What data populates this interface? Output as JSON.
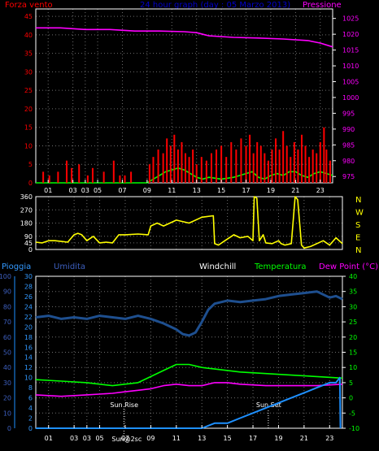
{
  "colors": {
    "background": "#000000",
    "frame": "#ffffff",
    "grid": "#6e6e6e",
    "wind_speed": "#ff0000",
    "wind_avg": "#00ff00",
    "pressure": "#ff00ff",
    "direction": "#ffff00",
    "humidity": "#1e4f8f",
    "humidity_text": "#3d5fbf",
    "rain_text": "#3399ff",
    "rain": "#1e90ff",
    "windchill": "#ffffff",
    "temperature": "#00ff00",
    "dewpoint": "#ff00ff",
    "title": "#0000cc",
    "marker": "#ffffff"
  },
  "chart_data": [
    {
      "type": "line",
      "title": "24 hour graph (day : 05 Marzo 2013)",
      "left_axis_label": "Forza vento",
      "right_axis_label": "Pressione",
      "xticks": [
        "01",
        "03",
        "03",
        "05",
        "07",
        "09",
        "11",
        "13",
        "15",
        "17",
        "19",
        "21",
        "23"
      ],
      "yticks_left": [
        0,
        5,
        10,
        15,
        20,
        25,
        30,
        35,
        40,
        45
      ],
      "yticks_right": [
        975,
        980,
        985,
        990,
        995,
        1000,
        1005,
        1010,
        1015,
        1020,
        1025
      ],
      "ylim_left": [
        0,
        47
      ],
      "ylim_right": [
        973,
        1028
      ],
      "xlim": [
        0,
        24
      ],
      "series": [
        {
          "key": "pressure",
          "axis": "right",
          "x": [
            0,
            2,
            4,
            6,
            8,
            10,
            12,
            13,
            14,
            16,
            18,
            20,
            22,
            23,
            24
          ],
          "y": [
            1022,
            1022,
            1021.5,
            1021.5,
            1021,
            1021,
            1020.8,
            1020.5,
            1019.5,
            1019,
            1018.8,
            1018.5,
            1018,
            1017.2,
            1016
          ]
        },
        {
          "key": "wind_avg",
          "axis": "left",
          "x": [
            0,
            9,
            9.5,
            10,
            10.5,
            11,
            11.5,
            12,
            12.5,
            13,
            13.5,
            14,
            15,
            16,
            16.5,
            17,
            17.5,
            18,
            18.5,
            19,
            19.5,
            20,
            20.5,
            21,
            21.5,
            22,
            22.5,
            23,
            23.5,
            24
          ],
          "y": [
            0,
            0,
            1,
            2,
            3,
            3.5,
            4,
            3.5,
            2.5,
            1.5,
            1,
            1.5,
            1,
            1.5,
            2,
            2.5,
            3,
            1.5,
            1,
            2,
            2.5,
            2,
            3,
            3,
            2,
            1.5,
            2.5,
            3,
            2.5,
            2
          ]
        },
        {
          "key": "wind_speed",
          "axis": "left",
          "kind": "gust",
          "x": [
            0.6,
            1.1,
            1.8,
            2.5,
            2.9,
            3.5,
            4.2,
            4.6,
            5.5,
            6.3,
            6.8,
            7.2,
            7.7,
            9.2,
            9.5,
            9.9,
            10.3,
            10.6,
            10.9,
            11.2,
            11.5,
            11.8,
            12.1,
            12.4,
            12.7,
            13.0,
            13.4,
            13.8,
            14.2,
            14.6,
            15.0,
            15.4,
            15.8,
            16.2,
            16.6,
            17.0,
            17.3,
            17.6,
            17.9,
            18.2,
            18.5,
            18.8,
            19.1,
            19.4,
            19.7,
            20.0,
            20.3,
            20.6,
            20.9,
            21.2,
            21.5,
            21.8,
            22.1,
            22.4,
            22.7,
            23.0,
            23.3,
            23.5,
            23.8
          ],
          "y": [
            3,
            2,
            3,
            6,
            4,
            5,
            2,
            4,
            3,
            6,
            2,
            2,
            3,
            5,
            7,
            9,
            8,
            12,
            10,
            13,
            9,
            11,
            8,
            7,
            9,
            5,
            7,
            6,
            8,
            9,
            10,
            7,
            11,
            9,
            12,
            10,
            13,
            8,
            11,
            10,
            8,
            6,
            9,
            12,
            9,
            14,
            10,
            7,
            11,
            9,
            13,
            10,
            7,
            9,
            8,
            11,
            15,
            9,
            6
          ]
        }
      ]
    },
    {
      "type": "line",
      "yticks": [
        0,
        45,
        90,
        180,
        270,
        360
      ],
      "ylim": [
        0,
        360
      ],
      "compass_labels": [
        "N",
        "W",
        "S",
        "E",
        "N"
      ],
      "xticks": [
        "01",
        "03",
        "03",
        "05",
        "07",
        "09",
        "11",
        "13",
        "15",
        "17",
        "19",
        "21",
        "23"
      ],
      "series": [
        {
          "key": "direction",
          "x": [
            0,
            0.5,
            1,
            1.5,
            2,
            2.5,
            3,
            3.3,
            3.6,
            4,
            4.5,
            5,
            5.5,
            6,
            6.5,
            7,
            8,
            8.8,
            9,
            9.5,
            10,
            11,
            12,
            13,
            13.9,
            14,
            14.3,
            14.8,
            15.5,
            16,
            16.6,
            17,
            17.1,
            17.3,
            17.5,
            17.8,
            18,
            18.5,
            19,
            19.2,
            19.5,
            20,
            20.3,
            20.5,
            20.8,
            21,
            21.5,
            22,
            22.5,
            23,
            23.5,
            24
          ],
          "y": [
            50,
            45,
            60,
            60,
            55,
            50,
            100,
            110,
            100,
            60,
            90,
            45,
            50,
            45,
            100,
            100,
            105,
            100,
            160,
            180,
            160,
            200,
            180,
            220,
            230,
            40,
            30,
            60,
            100,
            80,
            90,
            60,
            360,
            350,
            60,
            100,
            45,
            40,
            60,
            40,
            30,
            40,
            360,
            340,
            30,
            10,
            20,
            40,
            60,
            30,
            80,
            40
          ]
        }
      ]
    },
    {
      "type": "line",
      "left_labels": [
        "Pioggia",
        "Umidita"
      ],
      "legend": [
        "Windchill",
        "Temperatura",
        "Dew Point (°C)"
      ],
      "humidity_ticks": [
        0,
        10,
        20,
        30,
        40,
        50,
        60,
        70,
        80,
        90,
        100
      ],
      "rain_ticks": [
        0,
        2,
        4,
        6,
        8,
        10,
        12,
        14,
        16,
        18,
        20,
        22,
        24,
        26,
        28,
        30
      ],
      "temp_ticks": [
        -10,
        -5,
        0,
        5,
        10,
        15,
        20,
        25,
        30,
        35,
        40
      ],
      "ylim_humidity": [
        0,
        100
      ],
      "ylim_temp": [
        -10,
        40
      ],
      "annotations": [
        "Sun Rise",
        "Sun Set"
      ],
      "bottom_label": "Sun@2sc",
      "xticks": [
        "01",
        "03",
        "03",
        "05",
        "07",
        "09",
        "11",
        "13",
        "15",
        "17",
        "19",
        "21",
        "23"
      ],
      "series": [
        {
          "key": "humidity",
          "x": [
            0,
            1,
            2,
            3,
            4,
            5,
            6,
            7,
            8,
            9,
            10,
            11,
            11.5,
            12,
            12.5,
            13,
            13.5,
            14,
            15,
            16,
            17,
            18,
            19,
            20,
            21,
            22,
            23,
            23.5,
            24
          ],
          "y": [
            73,
            74,
            72,
            73,
            72,
            74,
            73,
            72,
            74,
            72,
            69,
            65,
            62,
            61,
            63,
            70,
            78,
            82,
            84,
            83,
            84,
            85,
            87,
            88,
            89,
            90,
            86,
            87,
            85
          ]
        },
        {
          "key": "temperature",
          "x": [
            0,
            2,
            4,
            6,
            8,
            9,
            10,
            11,
            12,
            13,
            14,
            15,
            16,
            18,
            20,
            22,
            24
          ],
          "y": [
            6,
            5.5,
            5,
            4,
            5,
            7,
            9,
            11,
            11,
            10,
            9.5,
            9,
            8.5,
            8,
            7.5,
            7,
            6.5
          ]
        },
        {
          "key": "dewpoint",
          "x": [
            0,
            2,
            4,
            6,
            7,
            8,
            9,
            10,
            11,
            12,
            13,
            14,
            15,
            16,
            18,
            20,
            22,
            24
          ],
          "y": [
            1,
            0.5,
            1,
            1.5,
            2,
            2.5,
            3,
            4,
            4.5,
            4,
            4,
            5,
            5,
            4.5,
            4,
            4,
            4,
            4.5
          ]
        },
        {
          "key": "rain",
          "unit": "mm",
          "x": [
            0,
            13,
            14,
            15,
            16,
            17,
            18,
            19,
            20,
            21,
            22,
            23,
            23.5,
            23.8,
            23.85
          ],
          "y": [
            0,
            0,
            1,
            1,
            2,
            3,
            4,
            5,
            6,
            7,
            8,
            9,
            9,
            10,
            0
          ]
        }
      ]
    }
  ],
  "labels": {
    "title": "24 hour graph (day : 05 Marzo 2013)",
    "forza_vento": "Forza vento",
    "pressione": "Pressione",
    "pioggia": "Pioggia",
    "umidita": "Umidita",
    "windchill": "Windchill",
    "temperatura": "Temperatura",
    "dewpoint": "Dew Point (°C)",
    "sun_rise": "Sun Rise",
    "sun_set": "Sun Set",
    "sun_2sc": "Sun@2sc"
  }
}
